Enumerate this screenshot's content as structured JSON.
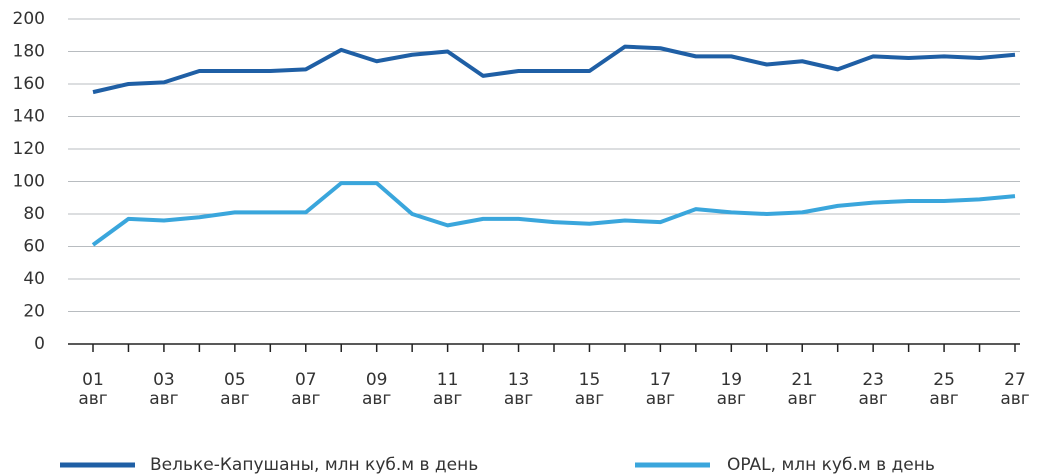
{
  "chart_data": {
    "type": "line",
    "categories": [
      "01 авг",
      null,
      "03 авг",
      null,
      "05 авг",
      null,
      "07 авг",
      null,
      "09 авг",
      null,
      "11 авг",
      null,
      "13 авг",
      null,
      "15 авг",
      null,
      "17 авг",
      null,
      "19 авг",
      null,
      "21 авг",
      null,
      "23 авг",
      null,
      "25 авг",
      null,
      "27 авг"
    ],
    "series": [
      {
        "name": "Вельке-Капушаны, млн куб.м в день",
        "color": "#1f5fa5",
        "values": [
          155,
          160,
          161,
          168,
          168,
          168,
          169,
          181,
          174,
          178,
          180,
          165,
          168,
          168,
          168,
          183,
          182,
          177,
          177,
          172,
          174,
          169,
          177,
          176,
          177,
          176,
          178
        ]
      },
      {
        "name": "OPAL, млн куб.м в день",
        "color": "#3aa6dc",
        "values": [
          61,
          77,
          76,
          78,
          81,
          81,
          81,
          99,
          99,
          80,
          73,
          77,
          77,
          75,
          74,
          76,
          75,
          83,
          81,
          80,
          81,
          85,
          87,
          88,
          88,
          89,
          91
        ]
      }
    ],
    "ylim": [
      0,
      200
    ],
    "yticks": [
      0,
      20,
      40,
      60,
      80,
      100,
      120,
      140,
      160,
      180,
      200
    ],
    "grid": true,
    "legend": "bottom"
  }
}
